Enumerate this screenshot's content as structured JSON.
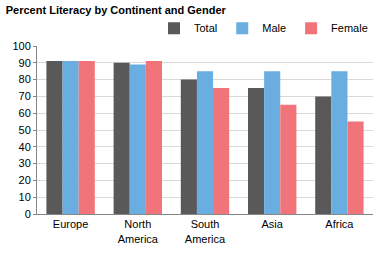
{
  "chart_data": {
    "type": "bar",
    "title": "Percent Literacy by Continent and Gender",
    "categories": [
      "Europe",
      "North America",
      "South America",
      "Asia",
      "Africa"
    ],
    "series": [
      {
        "name": "Total",
        "color": "#595959",
        "values": [
          91,
          90,
          80,
          75,
          70
        ]
      },
      {
        "name": "Male",
        "color": "#6aade0",
        "values": [
          91,
          89,
          85,
          85,
          85
        ]
      },
      {
        "name": "Female",
        "color": "#f07479",
        "values": [
          91,
          91,
          75,
          65,
          55
        ]
      }
    ],
    "ylim": [
      0,
      100
    ],
    "yticks": [
      0,
      10,
      20,
      30,
      40,
      50,
      60,
      70,
      80,
      90,
      100
    ],
    "grid": true,
    "legend": "top-right"
  }
}
